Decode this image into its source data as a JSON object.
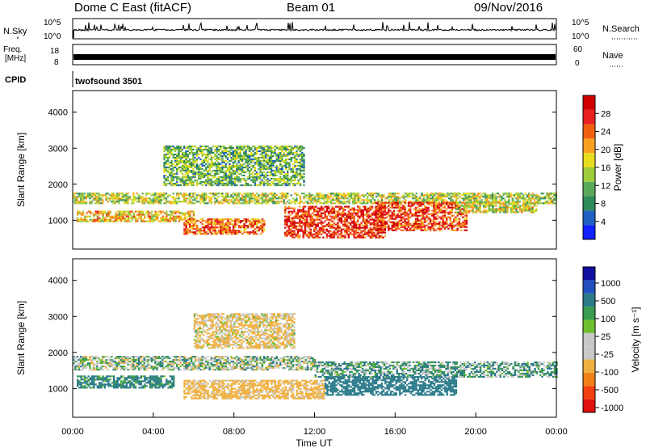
{
  "header": {
    "site": "Dome C East (fitACF)",
    "beam": "Beam 01",
    "date": "09/Nov/2016"
  },
  "noise_panel": {
    "left_label": "N.Sky",
    "right_label": "N.Search",
    "tick_top": "10^5",
    "tick_bottom": "10^0"
  },
  "freq_panel": {
    "left_label_1": "Freq.",
    "left_label_2": "[MHz]",
    "tick_top": "18",
    "tick_bottom": "8",
    "right_tick_top": "60",
    "right_tick_bottom": "0",
    "right_label": "Nave"
  },
  "cpid_panel": {
    "label": "CPID",
    "program": "twofsound 3501"
  },
  "colors": {
    "power": [
      "#1020ff",
      "#2060c0",
      "#2e8a5a",
      "#5aa85a",
      "#9ccc3c",
      "#e8dc20",
      "#f8a020",
      "#f06010",
      "#e82020",
      "#d00000"
    ],
    "velocity": [
      "#e01010",
      "#f04010",
      "#f08018",
      "#f0b040",
      "#c8c8c8",
      "#c8c8c8",
      "#70c030",
      "#3a9a50",
      "#2a7a8a",
      "#2050c0",
      "#1010a0"
    ]
  },
  "chart_data": [
    {
      "type": "heatmap",
      "panel": "power",
      "ylabel": "Slant Range [km]",
      "yticks": [
        "1000",
        "2000",
        "3000",
        "4000"
      ],
      "ylim": [
        200,
        4600
      ],
      "xlim": [
        "00:00",
        "24:00"
      ],
      "colorbar_label": "Power [dB]",
      "colorbar_ticks": [
        "4",
        "8",
        "12",
        "16",
        "20",
        "24",
        "28"
      ],
      "colorbar_range": [
        0,
        32
      ],
      "bands": [
        {
          "start_h": 0.0,
          "end_h": 24.0,
          "range_lo": 1450,
          "range_hi": 1750,
          "power_db": 15
        },
        {
          "start_h": 0.2,
          "end_h": 6.0,
          "range_lo": 950,
          "range_hi": 1250,
          "power_db": 19
        },
        {
          "start_h": 5.5,
          "end_h": 9.5,
          "range_lo": 600,
          "range_hi": 1050,
          "power_db": 24
        },
        {
          "start_h": 4.5,
          "end_h": 11.5,
          "range_lo": 1950,
          "range_hi": 3050,
          "power_db": 12
        },
        {
          "start_h": 10.5,
          "end_h": 15.5,
          "range_lo": 500,
          "range_hi": 1400,
          "power_db": 27
        },
        {
          "start_h": 15.0,
          "end_h": 19.5,
          "range_lo": 700,
          "range_hi": 1500,
          "power_db": 26
        },
        {
          "start_h": 19.0,
          "end_h": 23.0,
          "range_lo": 1200,
          "range_hi": 1500,
          "power_db": 16
        }
      ]
    },
    {
      "type": "heatmap",
      "panel": "velocity",
      "ylabel": "Slant Range [km]",
      "yticks": [
        "1000",
        "2000",
        "3000",
        "4000"
      ],
      "ylim": [
        200,
        4600
      ],
      "xlim": [
        "00:00",
        "24:00"
      ],
      "xticks": [
        "00:00",
        "04:00",
        "08:00",
        "12:00",
        "16:00",
        "20:00",
        "00:00"
      ],
      "xlabel": "Time UT",
      "colorbar_label": "Velocity [m s⁻¹]",
      "colorbar_ticks": [
        "1000",
        "500",
        "100",
        "25",
        "-25",
        "-100",
        "-500",
        "-1000"
      ],
      "bands": [
        {
          "start_h": 0.0,
          "end_h": 12.0,
          "range_lo": 1500,
          "range_hi": 1900,
          "velocity": 0
        },
        {
          "start_h": 0.2,
          "end_h": 5.0,
          "range_lo": 1000,
          "range_hi": 1350,
          "velocity": 150
        },
        {
          "start_h": 5.5,
          "end_h": 12.5,
          "range_lo": 700,
          "range_hi": 1200,
          "velocity": -200
        },
        {
          "start_h": 6.0,
          "end_h": 11.0,
          "range_lo": 2100,
          "range_hi": 3050,
          "velocity": -120
        },
        {
          "start_h": 12.0,
          "end_h": 24.0,
          "range_lo": 1300,
          "range_hi": 1750,
          "velocity": 60
        },
        {
          "start_h": 12.5,
          "end_h": 19.0,
          "range_lo": 800,
          "range_hi": 1300,
          "velocity": 250
        }
      ]
    }
  ]
}
